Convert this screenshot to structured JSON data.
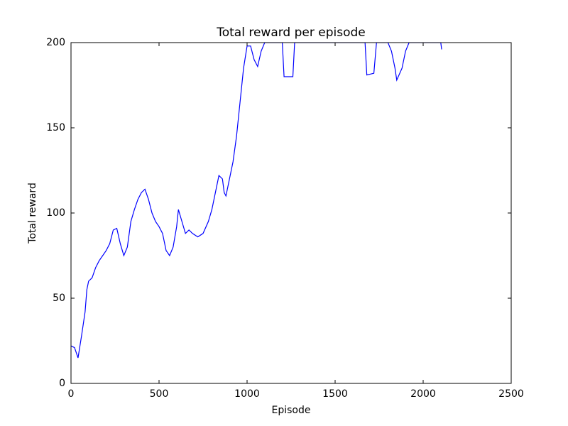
{
  "chart_data": {
    "type": "line",
    "title": "Total reward per episode",
    "x_label": "Episode",
    "y_label": "Total reward",
    "color": "#0000ff",
    "x": [
      0,
      20,
      40,
      60,
      80,
      90,
      100,
      120,
      140,
      160,
      180,
      200,
      220,
      240,
      260,
      280,
      300,
      320,
      340,
      360,
      380,
      400,
      420,
      440,
      460,
      480,
      500,
      520,
      540,
      560,
      580,
      600,
      610,
      630,
      650,
      670,
      690,
      720,
      750,
      780,
      800,
      820,
      840,
      860,
      870,
      880,
      900,
      920,
      940,
      960,
      980,
      1000,
      1020,
      1040,
      1060,
      1080,
      1100,
      1200,
      1210,
      1260,
      1270,
      1670,
      1680,
      1720,
      1735,
      1800,
      1820,
      1840,
      1850,
      1880,
      1900,
      1920,
      2100,
      2105
    ],
    "values": [
      22,
      21,
      15,
      28,
      42,
      55,
      60,
      62,
      68,
      72,
      75,
      78,
      82,
      90,
      91,
      82,
      75,
      80,
      95,
      102,
      108,
      112,
      114,
      108,
      100,
      95,
      92,
      88,
      78,
      75,
      80,
      92,
      102,
      95,
      88,
      90,
      88,
      86,
      88,
      95,
      102,
      112,
      122,
      120,
      112,
      110,
      120,
      130,
      145,
      165,
      185,
      198,
      198,
      190,
      186,
      195,
      200,
      200,
      180,
      180,
      200,
      200,
      181,
      182,
      200,
      200,
      195,
      185,
      178,
      185,
      195,
      200,
      200,
      196
    ],
    "xlim": [
      0,
      2500
    ],
    "xticks": [
      0,
      500,
      1000,
      1500,
      2000,
      2500
    ],
    "ylim": [
      0,
      200
    ],
    "yticks": [
      0,
      50,
      100,
      150,
      200
    ]
  }
}
